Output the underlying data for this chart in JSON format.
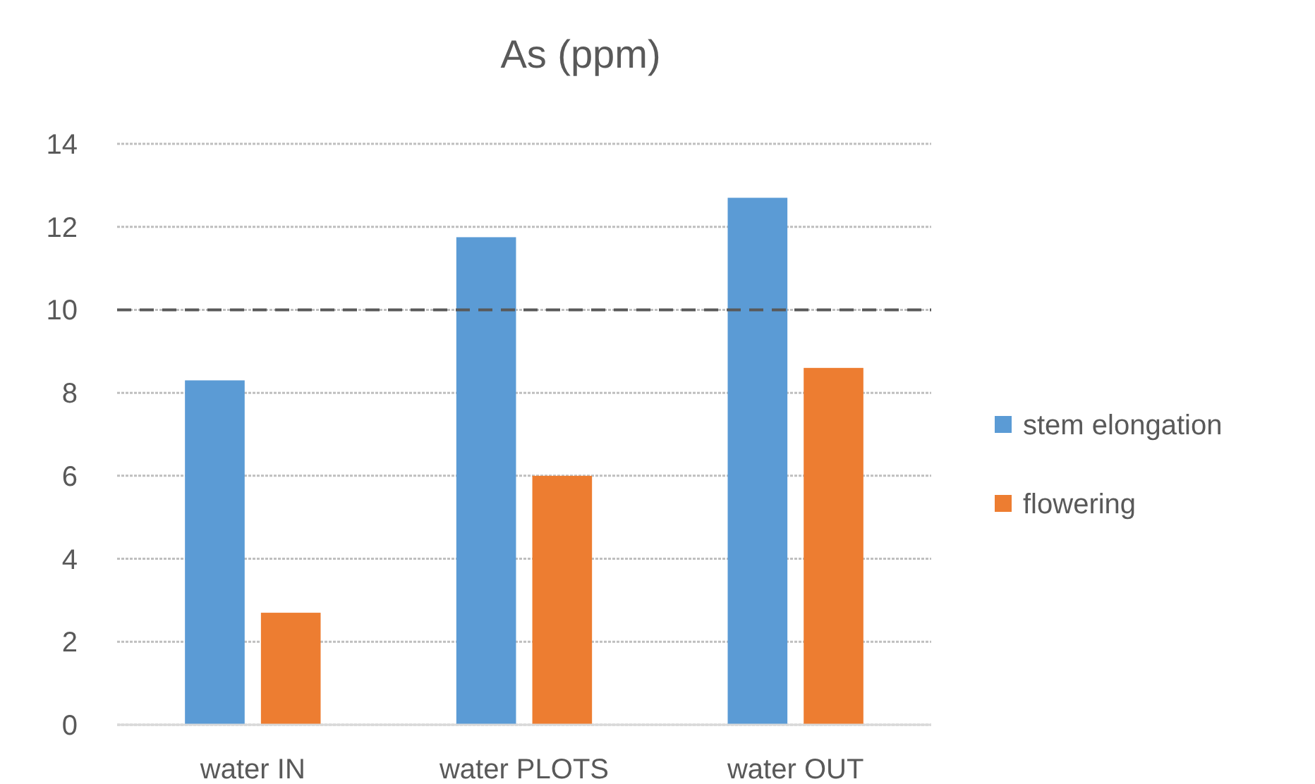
{
  "chart_data": {
    "type": "bar",
    "title": "As (ppm)",
    "categories": [
      "water IN",
      "water PLOTS",
      "water OUT"
    ],
    "series": [
      {
        "name": "stem elongation",
        "color": "#5b9bd5",
        "values": [
          8.3,
          11.75,
          12.7
        ]
      },
      {
        "name": "flowering",
        "color": "#ed7d31",
        "values": [
          2.7,
          6.0,
          8.6
        ]
      }
    ],
    "ylim": [
      0,
      14
    ],
    "yticks": [
      0,
      2,
      4,
      6,
      8,
      10,
      12,
      14
    ],
    "grid": "y",
    "legend": "right",
    "ref_lines": [
      {
        "axis": "y",
        "value": 10,
        "color": "#595959",
        "line_style": "dashed"
      }
    ]
  }
}
